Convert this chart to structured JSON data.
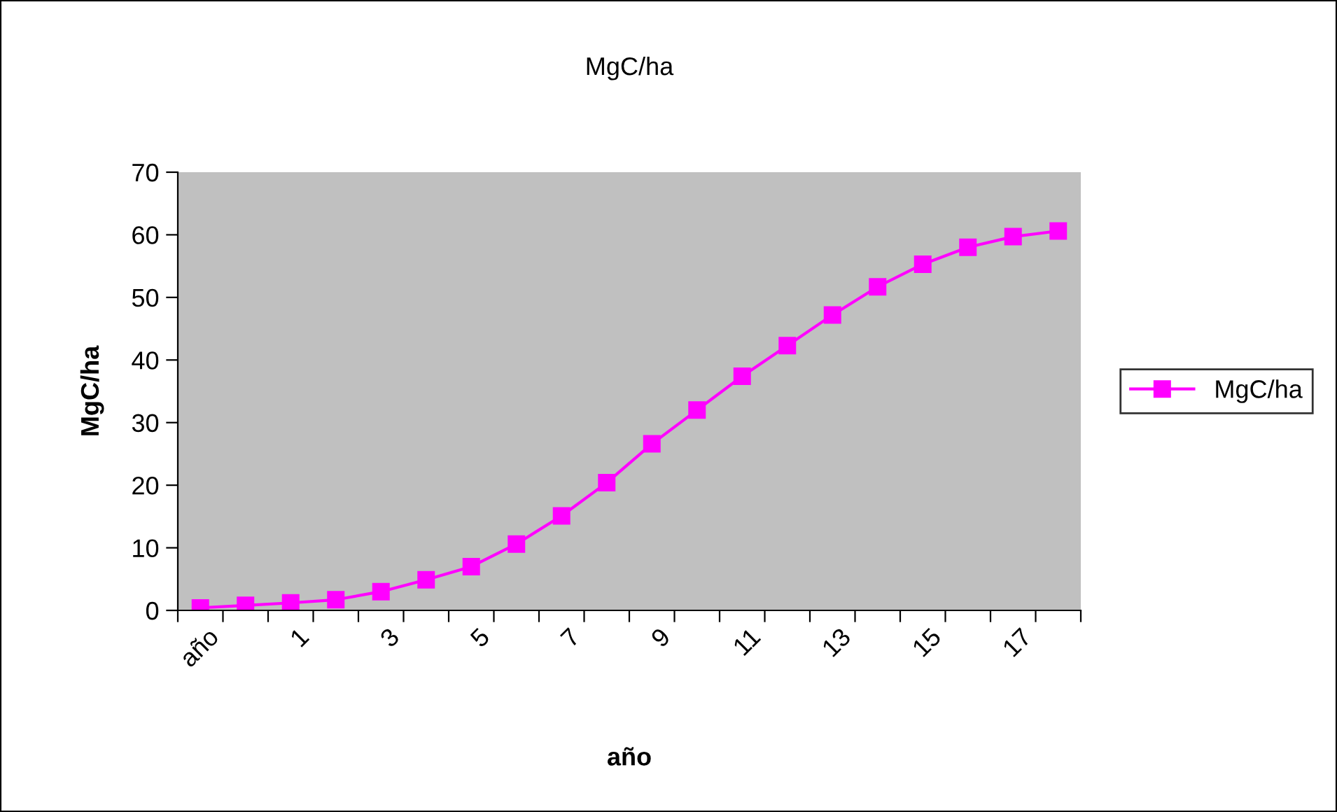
{
  "chart_data": {
    "type": "line",
    "title": "MgC/ha",
    "xlabel": "año",
    "ylabel": "MgC/ha",
    "categories": [
      "año",
      null,
      "1",
      null,
      "3",
      null,
      "5",
      null,
      "7",
      null,
      "9",
      null,
      "11",
      null,
      "13",
      null,
      "15",
      null,
      "17",
      null
    ],
    "series": [
      {
        "name": "MgC/ha",
        "color": "#ff00ff",
        "values": [
          0.4,
          0.8,
          1.2,
          1.7,
          3.0,
          4.9,
          7.0,
          10.6,
          15.1,
          20.4,
          26.6,
          32.0,
          37.4,
          42.3,
          47.2,
          51.7,
          55.3,
          58.0,
          59.7,
          60.6
        ]
      }
    ],
    "ylim": [
      0,
      70
    ],
    "yticks": [
      0,
      10,
      20,
      30,
      40,
      50,
      60,
      70
    ],
    "grid": false,
    "legend": "right",
    "marker": "square",
    "line_style": "solid"
  }
}
